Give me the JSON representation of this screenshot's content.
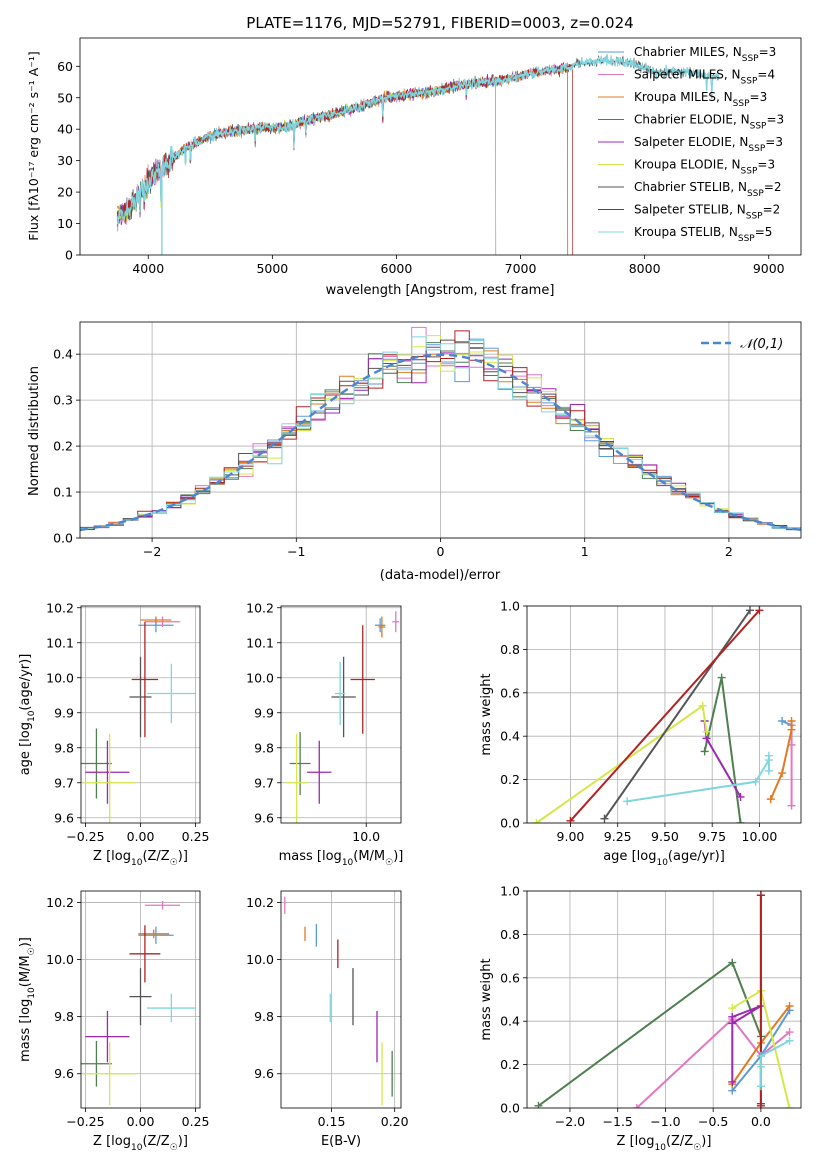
{
  "colors": {
    "Chabrier MILES": "#5b9bd5",
    "Salpeter MILES": "#e377c2",
    "Kroupa MILES": "#e07b20",
    "Chabrier ELODIE": "#4f7f4f",
    "Salpeter ELODIE": "#9c27b0",
    "Kroupa ELODIE": "#d4e84a",
    "Chabrier STELIB": "#555555",
    "Salpeter STELIB": "#b22222",
    "Kroupa STELIB": "#7fd6de",
    "normal": "#4a86d4"
  },
  "chart_data": [
    {
      "id": "spectrum",
      "type": "line",
      "title": "PLATE=1176, MJD=52791, FIBERID=0003, z=0.024",
      "xlabel": "wavelength [Angstrom, rest frame]",
      "ylabel": "Flux [fλ10⁻¹⁷ erg cm⁻² s⁻¹ A⁻¹]",
      "xlim": [
        3450,
        9260
      ],
      "ylim": [
        0,
        69
      ],
      "xticks": [
        4000,
        5000,
        6000,
        7000,
        8000,
        9000
      ],
      "yticks": [
        0,
        10,
        20,
        30,
        40,
        50,
        60
      ],
      "legend_position": "right",
      "legend": [
        {
          "series": "Chabrier MILES",
          "base": "Chabrier MILES, N",
          "sub": "SSP",
          "tail": "=3"
        },
        {
          "series": "Salpeter MILES",
          "base": "Salpeter MILES, N",
          "sub": "SSP",
          "tail": "=4"
        },
        {
          "series": "Kroupa MILES",
          "base": "Kroupa MILES, N",
          "sub": "SSP",
          "tail": "=3"
        },
        {
          "series": "Chabrier ELODIE",
          "base": "Chabrier ELODIE, N",
          "sub": "SSP",
          "tail": "=3"
        },
        {
          "series": "Salpeter ELODIE",
          "base": "Salpeter ELODIE, N",
          "sub": "SSP",
          "tail": "=3"
        },
        {
          "series": "Kroupa ELODIE",
          "base": "Kroupa ELODIE, N",
          "sub": "SSP",
          "tail": "=3"
        },
        {
          "series": "Chabrier STELIB",
          "base": "Chabrier STELIB, N",
          "sub": "SSP",
          "tail": "=2"
        },
        {
          "series": "Salpeter STELIB",
          "base": "Salpeter STELIB, N",
          "sub": "SSP",
          "tail": "=2"
        },
        {
          "series": "Kroupa STELIB",
          "base": "Kroupa STELIB, N",
          "sub": "SSP",
          "tail": "=5"
        }
      ],
      "continuum": [
        [
          3750,
          12
        ],
        [
          3850,
          15
        ],
        [
          3950,
          21
        ],
        [
          4050,
          26
        ],
        [
          4150,
          29
        ],
        [
          4300,
          34
        ],
        [
          4500,
          38
        ],
        [
          4700,
          39.5
        ],
        [
          4900,
          40.5
        ],
        [
          5100,
          40.5
        ],
        [
          5300,
          43
        ],
        [
          5500,
          45
        ],
        [
          5700,
          47
        ],
        [
          5900,
          50
        ],
        [
          6100,
          51
        ],
        [
          6300,
          52
        ],
        [
          6500,
          54
        ],
        [
          6700,
          55
        ],
        [
          6900,
          56
        ],
        [
          7100,
          58
        ],
        [
          7300,
          59
        ],
        [
          7500,
          61
        ],
        [
          7700,
          62
        ],
        [
          7900,
          61
        ],
        [
          8100,
          58
        ],
        [
          8300,
          58.5
        ],
        [
          8500,
          57
        ],
        [
          8600,
          56.5
        ]
      ],
      "endpoints": {
        "Chabrier MILES": 7380,
        "Salpeter MILES": 7380,
        "Kroupa MILES": 7380,
        "Chabrier ELODIE": 6800,
        "Salpeter ELODIE": 6800,
        "Kroupa ELODIE": 6800,
        "Chabrier STELIB": 8600,
        "Salpeter STELIB": 7420,
        "Kroupa STELIB": 8600
      }
    },
    {
      "id": "residuals",
      "type": "histogram",
      "xlabel": "(data-model)/error",
      "ylabel": "Normed distribution",
      "xlim": [
        -2.5,
        2.5
      ],
      "ylim": [
        0,
        0.47
      ],
      "xticks": [
        -2,
        -1,
        0,
        1,
        2
      ],
      "yticks": [
        0.0,
        0.1,
        0.2,
        0.3,
        0.4
      ],
      "grid": true,
      "bin_width": 0.1,
      "legend_label": "𝒩(0,1)",
      "legend_position": "top-right",
      "normal": {
        "mean": 0,
        "std": 1
      }
    },
    {
      "id": "Z-age",
      "type": "scatter",
      "xlabel_main": "Z [log",
      "xlabel_sub": "10",
      "xlabel_tail": "(Z/Z",
      "xlabel_sun": "☉",
      "xlabel_close": ")]",
      "ylabel_main": "age  [log",
      "ylabel_sub": "10",
      "ylabel_tail": "(age/yr)]",
      "xlim": [
        -0.27,
        0.27
      ],
      "ylim": [
        9.585,
        10.205
      ],
      "xticks": [
        -0.25,
        0.0,
        0.25
      ],
      "yticks": [
        9.6,
        9.7,
        9.8,
        9.9,
        10.0,
        10.1,
        10.2
      ],
      "points": [
        {
          "series": "Chabrier MILES",
          "x": 0.07,
          "y": 10.15,
          "xerr": 0.08,
          "yerr": 0.02
        },
        {
          "series": "Salpeter MILES",
          "x": 0.1,
          "y": 10.16,
          "xerr": 0.08,
          "yerr": 0.015
        },
        {
          "series": "Kroupa MILES",
          "x": 0.07,
          "y": 10.165,
          "xerr": 0.07,
          "yerr": 0.01
        },
        {
          "series": "Chabrier ELODIE",
          "x": -0.2,
          "y": 9.755,
          "xerr": 0.07,
          "yerr": 0.1
        },
        {
          "series": "Salpeter ELODIE",
          "x": -0.15,
          "y": 9.73,
          "xerr": 0.1,
          "yerr": 0.09
        },
        {
          "series": "Kroupa ELODIE",
          "x": -0.14,
          "y": 9.7,
          "xerr": 0.12,
          "yerr": 0.14
        },
        {
          "series": "Chabrier STELIB",
          "x": 0.0,
          "y": 9.945,
          "xerr": 0.05,
          "yerr": 0.115
        },
        {
          "series": "Salpeter STELIB",
          "x": 0.02,
          "y": 9.995,
          "xerr": 0.06,
          "yerr": 0.165
        },
        {
          "series": "Kroupa STELIB",
          "x": 0.14,
          "y": 9.955,
          "xerr": 0.11,
          "yerr": 0.085
        }
      ]
    },
    {
      "id": "mass-age",
      "type": "scatter",
      "xlabel_main": "mass [log",
      "xlabel_sub": "10",
      "xlabel_tail": "(M/M",
      "xlabel_sun": "☉",
      "xlabel_close": ")]",
      "xlim": [
        9.51,
        10.2
      ],
      "ylim": [
        9.585,
        10.205
      ],
      "xticks": [
        9.5,
        10.0
      ],
      "yticks": [
        9.6,
        9.7,
        9.8,
        9.9,
        10.0,
        10.1,
        10.2
      ],
      "points": [
        {
          "series": "Chabrier MILES",
          "x": 10.08,
          "y": 10.15,
          "xerr": 0.03,
          "yerr": 0.02
        },
        {
          "series": "Salpeter MILES",
          "x": 10.17,
          "y": 10.16,
          "xerr": 0.02,
          "yerr": 0.03
        },
        {
          "series": "Kroupa MILES",
          "x": 10.09,
          "y": 10.145,
          "xerr": 0.02,
          "yerr": 0.03
        },
        {
          "series": "Chabrier ELODIE",
          "x": 9.62,
          "y": 9.755,
          "xerr": 0.06,
          "yerr": 0.09
        },
        {
          "series": "Salpeter ELODIE",
          "x": 9.73,
          "y": 9.73,
          "xerr": 0.07,
          "yerr": 0.09
        },
        {
          "series": "Kroupa ELODIE",
          "x": 9.6,
          "y": 9.7,
          "xerr": 0.06,
          "yerr": 0.14
        },
        {
          "series": "Chabrier STELIB",
          "x": 9.87,
          "y": 9.945,
          "xerr": 0.07,
          "yerr": 0.115
        },
        {
          "series": "Salpeter STELIB",
          "x": 9.98,
          "y": 9.995,
          "xerr": 0.07,
          "yerr": 0.155
        },
        {
          "series": "Kroupa STELIB",
          "x": 9.85,
          "y": 9.955,
          "xerr": 0.03,
          "yerr": 0.09
        }
      ]
    },
    {
      "id": "weights-age",
      "type": "line",
      "xlabel_main": "age  [log",
      "xlabel_sub": "10",
      "xlabel_tail": "(age/yr)]",
      "ylabel": "mass weight",
      "xlim": [
        8.77,
        10.22
      ],
      "ylim": [
        0,
        1
      ],
      "xticks": [
        9.0,
        9.25,
        9.5,
        9.75,
        10.0
      ],
      "yticks": [
        0.0,
        0.2,
        0.4,
        0.6,
        0.8,
        1.0
      ],
      "grid": true,
      "series": [
        {
          "name": "Chabrier MILES",
          "x": [
            10.12,
            10.17
          ],
          "y": [
            0.47,
            0.45
          ]
        },
        {
          "name": "Salpeter MILES",
          "x": [
            10.17,
            10.17,
            10.17
          ],
          "y": [
            0.45,
            0.36,
            0.08
          ]
        },
        {
          "name": "Kroupa MILES",
          "x": [
            10.06,
            10.12,
            10.17,
            10.17
          ],
          "y": [
            0.11,
            0.23,
            0.43,
            0.47
          ]
        },
        {
          "name": "Chabrier ELODIE",
          "x": [
            9.71,
            9.8,
            9.9
          ],
          "y": [
            0.33,
            0.67,
            0.0
          ]
        },
        {
          "name": "Salpeter ELODIE",
          "x": [
            9.9,
            9.72,
            9.71
          ],
          "y": [
            0.12,
            0.39,
            0.47
          ]
        },
        {
          "name": "Kroupa ELODIE",
          "x": [
            8.82,
            9.7,
            9.72
          ],
          "y": [
            0.0,
            0.54,
            0.42
          ]
        },
        {
          "name": "Chabrier STELIB",
          "x": [
            9.18,
            9.95
          ],
          "y": [
            0.02,
            0.98
          ]
        },
        {
          "name": "Salpeter STELIB",
          "x": [
            9.0,
            10.0
          ],
          "y": [
            0.01,
            0.98
          ]
        },
        {
          "name": "Kroupa STELIB",
          "x": [
            9.3,
            9.98,
            10.05,
            10.05,
            10.05
          ],
          "y": [
            0.1,
            0.19,
            0.29,
            0.31,
            0.24
          ]
        }
      ]
    },
    {
      "id": "Z-mass",
      "type": "scatter",
      "xlabel_main": "Z [log",
      "xlabel_sub": "10",
      "xlabel_tail": "(Z/Z",
      "xlabel_sun": "☉",
      "xlabel_close": ")]",
      "ylabel_main": "mass [log",
      "ylabel_sub": "10",
      "ylabel_tail": "(M/M",
      "ylabel_sun": "☉",
      "ylabel_close": ")]",
      "xlim": [
        -0.27,
        0.27
      ],
      "ylim": [
        9.48,
        10.24
      ],
      "xticks": [
        -0.25,
        0.0,
        0.25
      ],
      "yticks": [
        9.6,
        9.8,
        10.0,
        10.2
      ],
      "points": [
        {
          "series": "Chabrier MILES",
          "x": 0.07,
          "y": 10.085,
          "xerr": 0.08,
          "yerr": 0.03
        },
        {
          "series": "Salpeter MILES",
          "x": 0.1,
          "y": 10.19,
          "xerr": 0.08,
          "yerr": 0.015
        },
        {
          "series": "Kroupa MILES",
          "x": 0.06,
          "y": 10.09,
          "xerr": 0.07,
          "yerr": 0.015
        },
        {
          "series": "Chabrier ELODIE",
          "x": -0.2,
          "y": 9.635,
          "xerr": 0.07,
          "yerr": 0.08
        },
        {
          "series": "Salpeter ELODIE",
          "x": -0.15,
          "y": 9.73,
          "xerr": 0.1,
          "yerr": 0.09
        },
        {
          "series": "Kroupa ELODIE",
          "x": -0.14,
          "y": 9.6,
          "xerr": 0.12,
          "yerr": 0.11
        },
        {
          "series": "Chabrier STELIB",
          "x": 0.0,
          "y": 9.87,
          "xerr": 0.05,
          "yerr": 0.1
        },
        {
          "series": "Salpeter STELIB",
          "x": 0.02,
          "y": 10.02,
          "xerr": 0.07,
          "yerr": 0.1
        },
        {
          "series": "Kroupa STELIB",
          "x": 0.14,
          "y": 9.83,
          "xerr": 0.11,
          "yerr": 0.05
        }
      ]
    },
    {
      "id": "ebv-mass",
      "type": "scatter",
      "xlabel": "E(B-V)",
      "xlim": [
        0.11,
        0.205
      ],
      "ylim": [
        9.48,
        10.24
      ],
      "xticks": [
        0.1,
        0.15,
        0.2
      ],
      "yticks": [
        9.6,
        9.8,
        10.0,
        10.2
      ],
      "points": [
        {
          "series": "Chabrier MILES",
          "x": 0.138,
          "y": 10.085,
          "yerr": 0.04
        },
        {
          "series": "Salpeter MILES",
          "x": 0.113,
          "y": 10.19,
          "yerr": 0.03
        },
        {
          "series": "Kroupa MILES",
          "x": 0.129,
          "y": 10.09,
          "yerr": 0.025
        },
        {
          "series": "Chabrier ELODIE",
          "x": 0.198,
          "y": 9.6,
          "yerr": 0.08
        },
        {
          "series": "Salpeter ELODIE",
          "x": 0.186,
          "y": 9.73,
          "yerr": 0.09
        },
        {
          "series": "Kroupa ELODIE",
          "x": 0.19,
          "y": 9.6,
          "yerr": 0.11
        },
        {
          "series": "Chabrier STELIB",
          "x": 0.167,
          "y": 9.87,
          "yerr": 0.1
        },
        {
          "series": "Salpeter STELIB",
          "x": 0.155,
          "y": 10.02,
          "yerr": 0.05
        },
        {
          "series": "Kroupa STELIB",
          "x": 0.149,
          "y": 9.83,
          "yerr": 0.05
        }
      ]
    },
    {
      "id": "weights-Z",
      "type": "line",
      "xlabel_main": "Z [log",
      "xlabel_sub": "10",
      "xlabel_tail": "(Z/Z",
      "xlabel_sun": "☉",
      "xlabel_close": ")]",
      "ylabel": "mass weight",
      "xlim": [
        -2.45,
        0.42
      ],
      "ylim": [
        0,
        1
      ],
      "xticks": [
        -2.0,
        -1.5,
        -1.0,
        -0.5,
        0.0
      ],
      "yticks": [
        0.0,
        0.2,
        0.4,
        0.6,
        0.8,
        1.0
      ],
      "grid": true,
      "series": [
        {
          "name": "Chabrier MILES",
          "x": [
            -0.3,
            0.0,
            0.3
          ],
          "y": [
            0.08,
            0.24,
            0.45
          ]
        },
        {
          "name": "Salpeter MILES",
          "x": [
            -1.3,
            -0.3,
            0.0,
            0.3
          ],
          "y": [
            0.0,
            0.41,
            0.24,
            0.35
          ]
        },
        {
          "name": "Kroupa MILES",
          "x": [
            -0.3,
            0.0,
            0.3
          ],
          "y": [
            0.11,
            0.3,
            0.47
          ]
        },
        {
          "name": "Chabrier ELODIE",
          "x": [
            -2.33,
            -0.3,
            0.0
          ],
          "y": [
            0.01,
            0.67,
            0.33
          ]
        },
        {
          "name": "Salpeter ELODIE",
          "x": [
            -0.3,
            -0.3,
            0.0,
            -0.3
          ],
          "y": [
            0.12,
            0.42,
            0.47,
            0.39
          ]
        },
        {
          "name": "Kroupa ELODIE",
          "x": [
            -0.3,
            0.0,
            0.3
          ],
          "y": [
            0.46,
            0.54,
            0.0
          ]
        },
        {
          "name": "Chabrier STELIB",
          "x": [
            0.0,
            0.0
          ],
          "y": [
            0.02,
            0.98
          ]
        },
        {
          "name": "Salpeter STELIB",
          "x": [
            0.0,
            0.0
          ],
          "y": [
            0.01,
            0.98
          ]
        },
        {
          "name": "Kroupa STELIB",
          "x": [
            0.0,
            0.0,
            0.0,
            0.3
          ],
          "y": [
            0.1,
            0.19,
            0.24,
            0.31
          ]
        }
      ]
    }
  ]
}
